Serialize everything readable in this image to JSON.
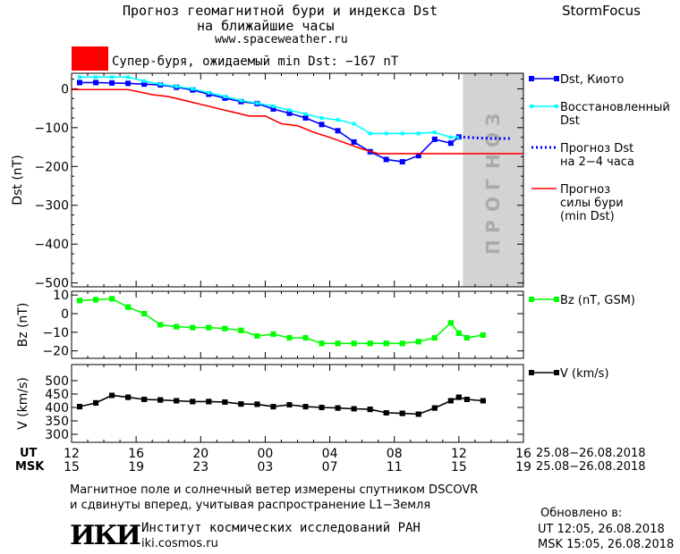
{
  "header": {
    "title_line1": "Прогноз геомагнитной бури и индекса Dst",
    "title_line2": "на ближайшие часы",
    "site": "www.spaceweather.ru",
    "brand": "StormFocus",
    "storm_label": "Супер-буря, ожидаемый min Dst: −167 nT",
    "storm_color": "#ff0000"
  },
  "footer": {
    "ut_label": "UT",
    "msk_label": "MSK",
    "ut_ticks": [
      "12",
      "16",
      "20",
      "00",
      "04",
      "08",
      "12",
      "16"
    ],
    "msk_ticks": [
      "15",
      "19",
      "23",
      "03",
      "07",
      "11",
      "15",
      "19"
    ],
    "date_range_ut": "25.08−26.08.2018",
    "date_range_msk": "25.08−26.08.2018",
    "note_line1": "Магнитное поле и солнечный ветер измерены спутником DSCOVR",
    "note_line2": "и сдвинуты вперед, учитывая распространение L1−Земля",
    "institute": "Институт космических исследований РАН",
    "institute_site": "iki.cosmos.ru",
    "logo_text": "ИКИ",
    "updated_label": "Обновлено в:",
    "updated_ut": "UT  12:05, 26.08.2018",
    "updated_msk": "MSK 15:05, 26.08.2018"
  },
  "chart_data": [
    {
      "type": "line",
      "ylabel": "Dst (nT)",
      "ylim": [
        -510,
        40
      ],
      "xlim": [
        12,
        40
      ],
      "forecast_band": {
        "x": [
          12.0,
          15.85
        ],
        "label": "ПРОГНОЗ",
        "color": "#d3d3d3"
      },
      "yticks": [
        0,
        -100,
        -200,
        -300,
        -400,
        -500
      ],
      "legend_placement": "right",
      "series": [
        {
          "name": "Dst, Киото",
          "color": "#0000ff",
          "style": "solid-square",
          "x": [
            12.5,
            13.5,
            14.5,
            15.5,
            16.5,
            17.5,
            18.5,
            19.5,
            20.5,
            21.5,
            22.5,
            23.5,
            24.5,
            25.5,
            26.5,
            27.5,
            28.5,
            29.5,
            30.5,
            31.5,
            32.5,
            33.5,
            34.5,
            35.5,
            36.0
          ],
          "y": [
            16,
            16,
            15,
            14,
            12,
            10,
            4,
            -3,
            -14,
            -24,
            -33,
            -38,
            -52,
            -63,
            -75,
            -92,
            -108,
            -137,
            -162,
            -182,
            -188,
            -172,
            -130,
            -140,
            -124
          ]
        },
        {
          "name": "Восстановленный Dst",
          "color": "#00ffff",
          "style": "solid-small",
          "x": [
            12.5,
            13.5,
            14.5,
            15.5,
            16.5,
            17.5,
            18.5,
            19.5,
            20.5,
            21.5,
            22.5,
            23.5,
            24.5,
            25.5,
            26.5,
            27.5,
            28.5,
            29.5,
            30.5,
            31.5,
            32.5,
            33.5,
            34.5,
            35.5,
            36.0
          ],
          "y": [
            30,
            30,
            30,
            30,
            20,
            12,
            6,
            0,
            -10,
            -20,
            -30,
            -37,
            -45,
            -55,
            -65,
            -75,
            -80,
            -90,
            -115,
            -115,
            -115,
            -115,
            -112,
            -125,
            -125
          ]
        },
        {
          "name": "Прогноз Dst на 2−4 часа",
          "color": "#0000ff",
          "style": "dotted",
          "x": [
            36.0,
            37.0,
            38.0,
            39.2
          ],
          "y": [
            -124,
            -126,
            -128,
            -128
          ]
        },
        {
          "name": "Прогноз силы бури (min Dst)",
          "color": "#ff0000",
          "style": "solid",
          "x": [
            12.0,
            15.5,
            17.0,
            18.0,
            19.0,
            20.0,
            21.0,
            22.0,
            23.0,
            24.0,
            25.0,
            26.0,
            27.0,
            28.0,
            29.0,
            30.0,
            31.0,
            40.0
          ],
          "y": [
            -2,
            -2,
            -15,
            -20,
            -30,
            -40,
            -50,
            -60,
            -70,
            -70,
            -90,
            -95,
            -112,
            -125,
            -140,
            -155,
            -167,
            -167
          ]
        }
      ]
    },
    {
      "type": "line",
      "ylabel": "Bz (nT)",
      "ylim": [
        -24,
        12
      ],
      "xlim": [
        12,
        40
      ],
      "yticks": [
        10,
        0,
        -10,
        -20
      ],
      "series": [
        {
          "name": "Bz (nT, GSM)",
          "color": "#00ff00",
          "x": [
            12.5,
            13.5,
            14.5,
            15.5,
            16.5,
            17.5,
            18.5,
            19.5,
            20.5,
            21.5,
            22.5,
            23.5,
            24.5,
            25.5,
            26.5,
            27.5,
            28.5,
            29.5,
            30.5,
            31.5,
            32.5,
            33.5,
            34.5,
            35.5,
            36.0,
            36.5,
            37.5
          ],
          "y": [
            7,
            7.5,
            8,
            3.5,
            0,
            -6,
            -7,
            -7.5,
            -7.5,
            -8,
            -9,
            -12,
            -11,
            -13,
            -13,
            -16,
            -16,
            -16,
            -16,
            -16,
            -16,
            -15,
            -13,
            -5,
            -10.5,
            -13,
            -11.5
          ]
        }
      ]
    },
    {
      "type": "line",
      "ylabel": "V (km/s)",
      "ylim": [
        270,
        560
      ],
      "xlim": [
        12,
        40
      ],
      "yticks": [
        500,
        450,
        400,
        350,
        300
      ],
      "series": [
        {
          "name": "V (km/s)",
          "color": "#000000",
          "x": [
            12.5,
            13.5,
            14.5,
            15.5,
            16.5,
            17.5,
            18.5,
            19.5,
            20.5,
            21.5,
            22.5,
            23.5,
            24.5,
            25.5,
            26.5,
            27.5,
            28.5,
            29.5,
            30.5,
            31.5,
            32.5,
            33.5,
            34.5,
            35.5,
            36.0,
            36.5,
            37.5
          ],
          "y": [
            403,
            417,
            445,
            438,
            430,
            428,
            425,
            422,
            422,
            420,
            413,
            412,
            403,
            410,
            403,
            400,
            398,
            395,
            393,
            380,
            378,
            375,
            398,
            425,
            438,
            430,
            425
          ]
        }
      ]
    }
  ]
}
